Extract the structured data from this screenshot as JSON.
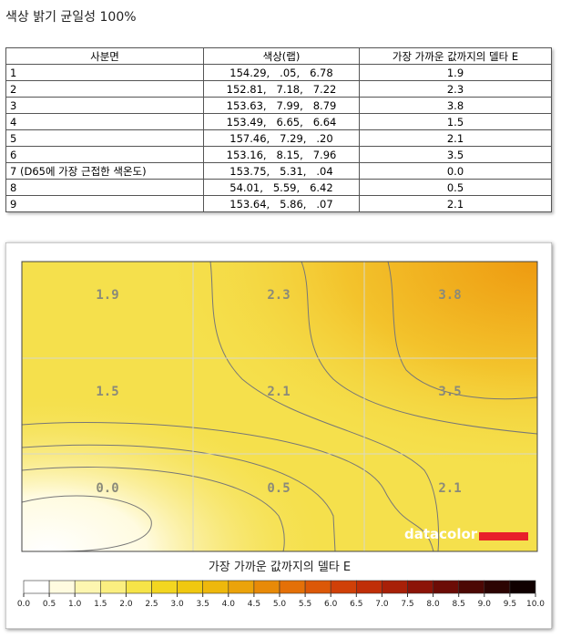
{
  "title": "색상 밝기 균일성 100%",
  "table": {
    "headers": [
      "사분면",
      "색상(랩)",
      "가장 가까운 값까지의 델타 E"
    ],
    "rows": [
      [
        "1",
        "154.29,   .05,   6.78",
        "1.9"
      ],
      [
        "2",
        "152.81,   7.18,   7.22",
        "2.3"
      ],
      [
        "3",
        "153.63,   7.99,   8.79",
        "3.8"
      ],
      [
        "4",
        "153.49,   6.65,   6.64",
        "1.5"
      ],
      [
        "5",
        "157.46,   7.29,   .20",
        "2.1"
      ],
      [
        "6",
        "153.16,   8.15,   7.96",
        "3.5"
      ],
      [
        "7 (D65에 가장 근접한 색온도)",
        "153.75,   5.31,   .04",
        "0.0"
      ],
      [
        "8",
        "54.01,   5.59,   6.42",
        "0.5"
      ],
      [
        "9",
        "153.64,   5.86,   .07",
        "2.1"
      ]
    ]
  },
  "heatmap": {
    "cells": [
      "1.9",
      "2.3",
      "3.8",
      "1.5",
      "2.1",
      "3.5",
      "0.0",
      "0.5",
      "2.1"
    ],
    "logo": "datacolor",
    "legend_title": "가장 가까운 값까지의 델타 E",
    "legend_ticks": [
      "0.0",
      "0.5",
      "1.0",
      "1.5",
      "2.0",
      "2.5",
      "3.0",
      "3.5",
      "4.0",
      "4.5",
      "5.0",
      "5.5",
      "6.0",
      "6.5",
      "7.0",
      "7.5",
      "8.0",
      "8.5",
      "9.0",
      "9.5",
      "10.0"
    ]
  }
}
